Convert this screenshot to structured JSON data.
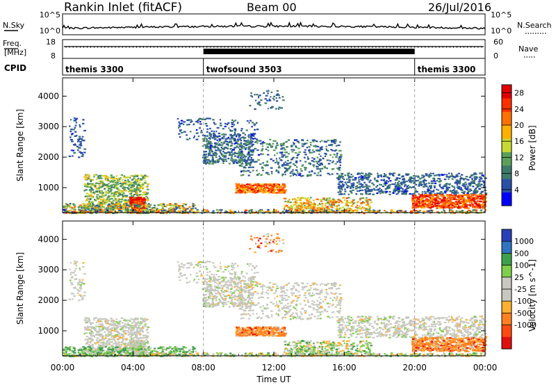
{
  "header": {
    "station": "Rankin Inlet (fitACF)",
    "beam": "Beam 00",
    "date": "26/Jul/2016"
  },
  "strips": {
    "nsky_label": "N.Sky",
    "nsearch_label": "N.Search",
    "nsky_ticks": [
      "10^5",
      "10^0"
    ],
    "nsearch_ticks": [
      "10^5",
      "10^0"
    ],
    "freq_label_1": "Freq.",
    "freq_label_2": "[MHz]",
    "freq_ticks": [
      "18",
      "8"
    ],
    "nave_label": "Nave",
    "nave_ticks": [
      "60",
      "0"
    ],
    "cpid_label": "CPID",
    "cpid_segments": [
      {
        "name": "themis 3300",
        "start_h": 0,
        "end_h": 8
      },
      {
        "name": "twofsound 3503",
        "start_h": 8,
        "end_h": 20
      },
      {
        "name": "themis 3300",
        "start_h": 20,
        "end_h": 24
      }
    ]
  },
  "colors": {
    "power_scale": [
      "#0000ff",
      "#2a4fa8",
      "#3e7a6a",
      "#5aa05a",
      "#c8d832",
      "#ffb000",
      "#ff7000",
      "#ff3000",
      "#e00000"
    ],
    "velocity_scale": [
      "#2a40b8",
      "#2f74c0",
      "#3f9f4c",
      "#7ed04a",
      "#c8c8c0",
      "#c8c8c0",
      "#ffb030",
      "#ff8020",
      "#ff4a10",
      "#e01010"
    ]
  },
  "chart_data": [
    {
      "type": "heatmap",
      "title": "Power",
      "xlabel": "",
      "ylabel": "Slant Range [km]",
      "x_ticks": [
        "00:00",
        "04:00",
        "08:00",
        "12:00",
        "16:00",
        "20:00",
        "00:00"
      ],
      "xlim_hours": [
        0,
        24
      ],
      "y_ticks": [
        1000,
        2000,
        3000,
        4000
      ],
      "ylim": [
        180,
        4600
      ],
      "colorbar_label": "Power [dB]",
      "colorbar_ticks": [
        4,
        8,
        12,
        16,
        20,
        24,
        28
      ],
      "clim": [
        0,
        30
      ]
    },
    {
      "type": "heatmap",
      "title": "Velocity",
      "xlabel": "Time UT",
      "ylabel": "Slant Range [km]",
      "x_ticks": [
        "00:00",
        "04:00",
        "08:00",
        "12:00",
        "16:00",
        "20:00",
        "00:00"
      ],
      "xlim_hours": [
        0,
        24
      ],
      "y_ticks": [
        1000,
        2000,
        3000,
        4000
      ],
      "ylim": [
        180,
        4600
      ],
      "colorbar_label": "Velocity [m s^-1]",
      "colorbar_ticks": [
        "1000",
        "500",
        "100",
        "25",
        "-25",
        "-100",
        "-500",
        "-1000"
      ]
    }
  ]
}
